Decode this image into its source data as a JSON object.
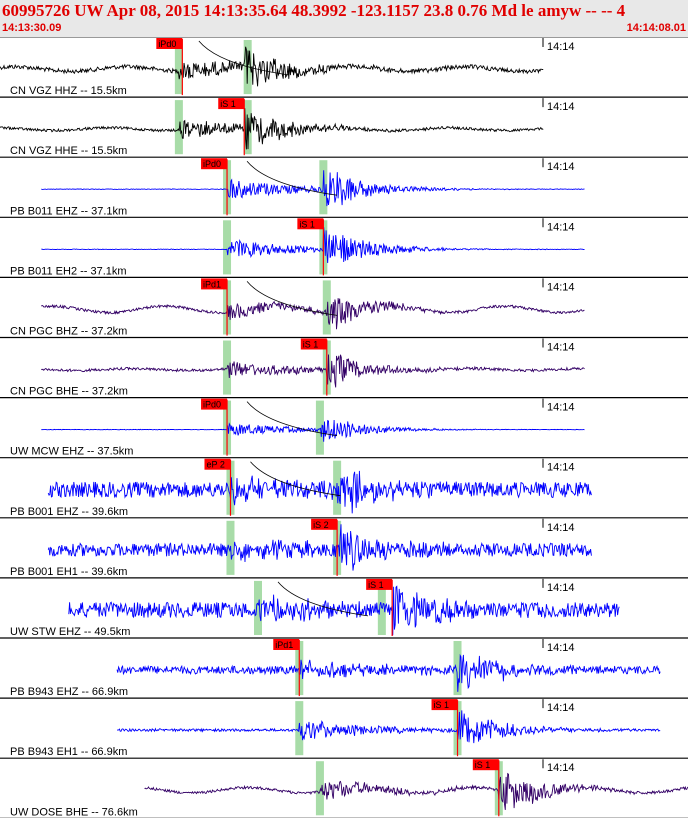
{
  "header": {
    "title": "60995726 UW Apr 08, 2015 14:13:35.64    48.3992 -123.1157 23.8 0.76 Md le amyw -- --     4",
    "time_start": "14:13:30.09",
    "time_end": "14:14:08.01"
  },
  "chart_data": {
    "type": "seismogram",
    "time_range": [
      "14:13:30.09",
      "14:14:08.01"
    ],
    "tick_label": "14:14",
    "colors": {
      "pick": "#ff0000",
      "window": "#a8dca8",
      "grid": "#000000"
    },
    "traces": [
      {
        "label": "CN VGZ HHZ -- 15.5km",
        "color": "#000000",
        "start": 0.0,
        "end": 0.79,
        "amp": 0.9,
        "noise": 0.08,
        "onset": 0.26,
        "s_time": 0.355,
        "long_period": 0.25,
        "pick": {
          "text": "iPd0",
          "t": 0.265
        },
        "green": [
          0.26,
          0.36
        ],
        "tail": true
      },
      {
        "label": "CN VGZ HHE -- 15.5km",
        "color": "#000000",
        "start": 0.0,
        "end": 0.79,
        "amp": 0.9,
        "noise": 0.05,
        "onset": 0.26,
        "s_time": 0.355,
        "long_period": 0.15,
        "pick": {
          "text": "iS 1",
          "t": 0.355
        },
        "green": [
          0.26,
          0.36
        ]
      },
      {
        "label": "PB B011 EHZ -- 37.1km",
        "color": "#0000ff",
        "start": 0.06,
        "end": 0.85,
        "amp": 0.9,
        "noise": 0.01,
        "onset": 0.33,
        "s_time": 0.47,
        "long_period": 0.0,
        "pick": {
          "text": "iPd0",
          "t": 0.33
        },
        "green": [
          0.33,
          0.47
        ],
        "tail": true
      },
      {
        "label": "PB B011 EH2 -- 37.1km",
        "color": "#0000ff",
        "start": 0.06,
        "end": 0.85,
        "amp": 0.9,
        "noise": 0.01,
        "onset": 0.33,
        "s_time": 0.47,
        "long_period": 0.0,
        "pick": {
          "text": "iS 1",
          "t": 0.47
        },
        "green": [
          0.33,
          0.47
        ]
      },
      {
        "label": "CN PGC BHZ -- 37.2km",
        "color": "#330066",
        "start": 0.06,
        "end": 0.85,
        "amp": 0.75,
        "noise": 0.05,
        "onset": 0.33,
        "s_time": 0.475,
        "long_period": 0.35,
        "pick": {
          "text": "iPd1",
          "t": 0.33
        },
        "green": [
          0.33,
          0.475
        ],
        "tail": true
      },
      {
        "label": "CN PGC BHE -- 37.2km",
        "color": "#330066",
        "start": 0.06,
        "end": 0.85,
        "amp": 0.75,
        "noise": 0.05,
        "onset": 0.33,
        "s_time": 0.475,
        "long_period": 0.1,
        "pick": {
          "text": "iS 1",
          "t": 0.475
        },
        "green": [
          0.33,
          0.475
        ]
      },
      {
        "label": "UW MCW EHZ -- 37.5km",
        "color": "#0000ff",
        "start": 0.06,
        "end": 0.85,
        "amp": 0.6,
        "noise": 0.01,
        "onset": 0.33,
        "s_time": 0.465,
        "long_period": 0.0,
        "pick": {
          "text": "iPd0",
          "t": 0.33
        },
        "green": [
          0.33,
          0.465
        ],
        "tail": true
      },
      {
        "label": "PB B001 EHZ -- 39.6km",
        "color": "#0000ff",
        "start": 0.07,
        "end": 0.86,
        "amp": 0.9,
        "noise": 0.3,
        "onset": 0.335,
        "s_time": 0.49,
        "long_period": 0.0,
        "pick": {
          "text": "eP 2",
          "t": 0.335
        },
        "green": [
          0.335,
          0.49
        ],
        "tail": true
      },
      {
        "label": "PB B001 EH1 -- 39.6km",
        "color": "#0000ff",
        "start": 0.07,
        "end": 0.86,
        "amp": 0.9,
        "noise": 0.25,
        "onset": 0.335,
        "s_time": 0.49,
        "long_period": 0.0,
        "pick": {
          "text": "iS 2",
          "t": 0.49
        },
        "green": [
          0.335,
          0.49
        ]
      },
      {
        "label": "UW STW EHZ -- 49.5km",
        "color": "#0000ff",
        "start": 0.1,
        "end": 0.9,
        "amp": 0.9,
        "noise": 0.3,
        "onset": 0.375,
        "s_time": 0.57,
        "long_period": 0.0,
        "pick": {
          "text": "iS 1",
          "t": 0.57
        },
        "green": [
          0.375,
          0.555
        ],
        "tail": true
      },
      {
        "label": "PB B943 EHZ -- 66.9km",
        "color": "#0000ff",
        "start": 0.17,
        "end": 0.96,
        "amp": 0.9,
        "noise": 0.15,
        "onset": 0.435,
        "s_time": 0.665,
        "long_period": 0.0,
        "pick": {
          "text": "iPd1",
          "t": 0.435
        },
        "green": [
          0.435,
          0.665
        ]
      },
      {
        "label": "PB B943 EH1 -- 66.9km",
        "color": "#0000ff",
        "start": 0.17,
        "end": 0.96,
        "amp": 0.9,
        "noise": 0.05,
        "onset": 0.435,
        "s_time": 0.665,
        "long_period": 0.0,
        "pick": {
          "text": "iS 1",
          "t": 0.665
        },
        "green": [
          0.435,
          0.665
        ]
      },
      {
        "label": "UW DOSE BHE -- 76.6km",
        "color": "#330066",
        "start": 0.21,
        "end": 1.0,
        "amp": 0.9,
        "noise": 0.05,
        "onset": 0.465,
        "s_time": 0.725,
        "long_period": 0.3,
        "pick": {
          "text": "iS 1",
          "t": 0.725
        },
        "green": [
          0.465,
          0.725
        ]
      }
    ]
  }
}
